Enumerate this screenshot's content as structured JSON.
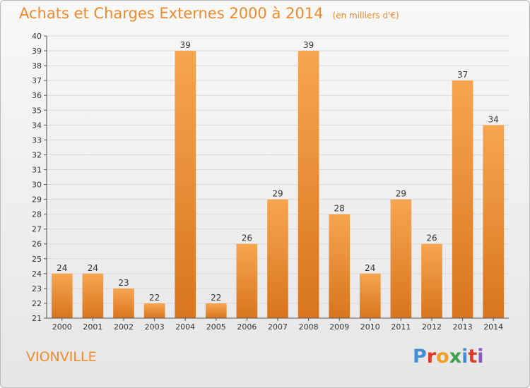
{
  "header": {
    "title": "Achats et Charges Externes 2000 à 2014",
    "unit": "(en milliers d'€)"
  },
  "footer": {
    "commune": "VIONVILLE",
    "logo": {
      "text": "Proxiti",
      "letters": [
        {
          "ch": "P",
          "color": "#3f8fd6"
        },
        {
          "ch": "r",
          "color": "#e23a2a"
        },
        {
          "ch": "o",
          "color": "#f0a020"
        },
        {
          "ch": "x",
          "color": "#3fa34d"
        },
        {
          "ch": "i",
          "color": "#3f8fd6"
        },
        {
          "ch": "t",
          "color": "#e23a2a"
        },
        {
          "ch": "i",
          "color": "#8a57c4"
        }
      ]
    }
  },
  "colors": {
    "bar_top": "#f7a550",
    "bar_bottom": "#d8751e",
    "title": "#f08a2c",
    "grid": "#d9d9d9",
    "axis_text": "#333333"
  },
  "chart_data": {
    "type": "bar",
    "title": "Achats et Charges Externes 2000 à 2014",
    "subtitle": "(en milliers d'€)",
    "categories": [
      "2000",
      "2001",
      "2002",
      "2003",
      "2004",
      "2005",
      "2006",
      "2007",
      "2008",
      "2009",
      "2010",
      "2011",
      "2012",
      "2013",
      "2014"
    ],
    "values": [
      24,
      24,
      23,
      22,
      39,
      22,
      26,
      29,
      39,
      28,
      24,
      29,
      26,
      37,
      34
    ],
    "value_labels": [
      "24",
      "24",
      "23",
      "22",
      "39",
      "22",
      "26",
      "29",
      "39",
      "28",
      "24",
      "29",
      "26",
      "37",
      "34"
    ],
    "ylim": [
      21,
      40
    ],
    "yticks": [
      "21",
      "22",
      "23",
      "24",
      "25",
      "26",
      "27",
      "28",
      "29",
      "30",
      "31",
      "32",
      "33",
      "34",
      "35",
      "36",
      "37",
      "38",
      "39",
      "40"
    ],
    "xlabel": "",
    "ylabel": "",
    "grid": true,
    "legend": "none"
  }
}
